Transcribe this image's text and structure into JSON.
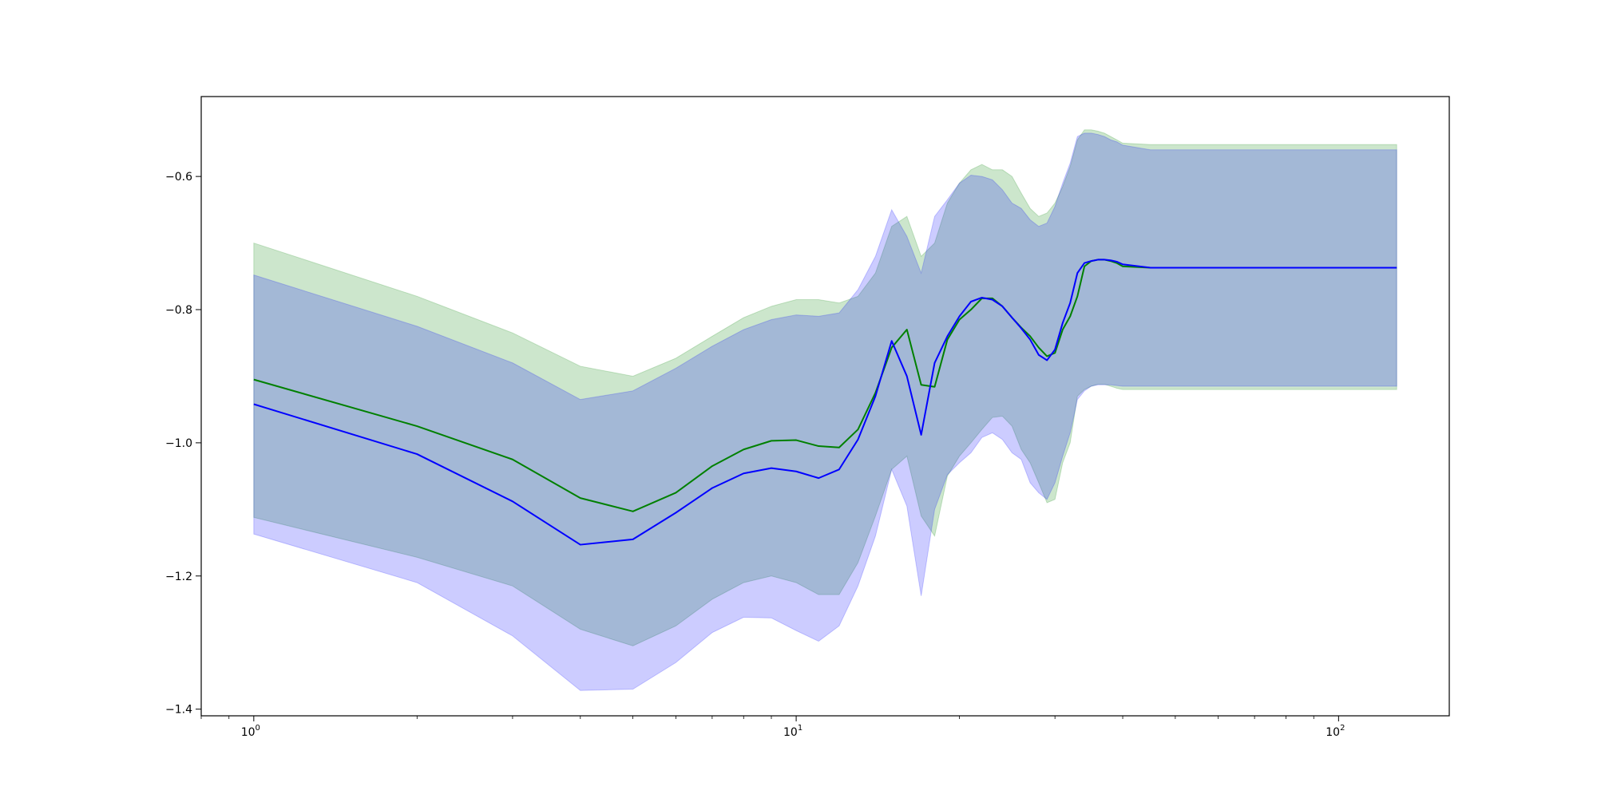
{
  "chart_data": {
    "type": "line",
    "title": "",
    "xlabel": "",
    "ylabel": "",
    "x_scale": "log",
    "xlim": [
      0.8,
      160
    ],
    "ylim": [
      -1.41,
      -0.48
    ],
    "grid": false,
    "x_ticks": [
      {
        "value": 1,
        "base": "10",
        "exp": "0"
      },
      {
        "value": 10,
        "base": "10",
        "exp": "1"
      },
      {
        "value": 100,
        "base": "10",
        "exp": "2"
      }
    ],
    "y_ticks": [
      {
        "value": -1.4,
        "label": "−1.4"
      },
      {
        "value": -1.2,
        "label": "−1.2"
      },
      {
        "value": -1.0,
        "label": "−1.0"
      },
      {
        "value": -0.8,
        "label": "−0.8"
      },
      {
        "value": -0.6,
        "label": "−0.6"
      }
    ],
    "colors": {
      "green_line": "#008000",
      "green_band": "#008000",
      "blue_line": "#0000ff",
      "blue_band": "#0000ff"
    },
    "series": [
      {
        "color": "green",
        "x": [
          1,
          2,
          3,
          4,
          5,
          6,
          7,
          8,
          9,
          10,
          11,
          12,
          13,
          14,
          15,
          16,
          17,
          18,
          19,
          20,
          21,
          22,
          23,
          24,
          25,
          26,
          27,
          28,
          29,
          30,
          31,
          32,
          33,
          34,
          35,
          36,
          37,
          38,
          39,
          40,
          45,
          128
        ],
        "y": [
          -0.905,
          -0.975,
          -1.025,
          -1.083,
          -1.103,
          -1.075,
          -1.035,
          -1.01,
          -0.997,
          -0.996,
          -1.005,
          -1.007,
          -0.98,
          -0.925,
          -0.857,
          -0.83,
          -0.913,
          -0.916,
          -0.845,
          -0.815,
          -0.8,
          -0.783,
          -0.783,
          -0.795,
          -0.812,
          -0.827,
          -0.84,
          -0.857,
          -0.87,
          -0.865,
          -0.83,
          -0.81,
          -0.78,
          -0.735,
          -0.727,
          -0.725,
          -0.725,
          -0.727,
          -0.73,
          -0.735,
          -0.737,
          -0.737
        ],
        "upper": [
          -0.7,
          -0.78,
          -0.835,
          -0.885,
          -0.9,
          -0.873,
          -0.84,
          -0.812,
          -0.795,
          -0.785,
          -0.785,
          -0.79,
          -0.78,
          -0.745,
          -0.675,
          -0.66,
          -0.72,
          -0.7,
          -0.64,
          -0.61,
          -0.59,
          -0.582,
          -0.59,
          -0.59,
          -0.6,
          -0.625,
          -0.648,
          -0.66,
          -0.655,
          -0.64,
          -0.615,
          -0.585,
          -0.545,
          -0.53,
          -0.53,
          -0.532,
          -0.535,
          -0.54,
          -0.545,
          -0.55,
          -0.552,
          -0.552
        ],
        "lower": [
          -1.112,
          -1.172,
          -1.215,
          -1.28,
          -1.305,
          -1.275,
          -1.235,
          -1.21,
          -1.2,
          -1.21,
          -1.228,
          -1.228,
          -1.18,
          -1.11,
          -1.04,
          -1.02,
          -1.11,
          -1.14,
          -1.05,
          -1.02,
          -1.0,
          -0.98,
          -0.962,
          -0.96,
          -0.975,
          -1.01,
          -1.03,
          -1.06,
          -1.09,
          -1.085,
          -1.03,
          -1.0,
          -0.93,
          -0.92,
          -0.915,
          -0.912,
          -0.912,
          -0.915,
          -0.918,
          -0.92,
          -0.92,
          -0.92
        ]
      },
      {
        "color": "blue",
        "x": [
          1,
          2,
          3,
          4,
          5,
          6,
          7,
          8,
          9,
          10,
          11,
          12,
          13,
          14,
          15,
          16,
          17,
          18,
          19,
          20,
          21,
          22,
          23,
          24,
          25,
          26,
          27,
          28,
          29,
          30,
          31,
          32,
          33,
          34,
          35,
          36,
          37,
          38,
          39,
          40,
          45,
          128
        ],
        "y": [
          -0.942,
          -1.017,
          -1.088,
          -1.153,
          -1.145,
          -1.105,
          -1.068,
          -1.046,
          -1.038,
          -1.043,
          -1.053,
          -1.04,
          -0.995,
          -0.93,
          -0.847,
          -0.9,
          -0.988,
          -0.88,
          -0.84,
          -0.81,
          -0.788,
          -0.782,
          -0.785,
          -0.795,
          -0.812,
          -0.828,
          -0.845,
          -0.868,
          -0.876,
          -0.86,
          -0.82,
          -0.79,
          -0.745,
          -0.73,
          -0.727,
          -0.725,
          -0.725,
          -0.726,
          -0.728,
          -0.732,
          -0.737,
          -0.737
        ],
        "upper": [
          -0.748,
          -0.825,
          -0.88,
          -0.935,
          -0.922,
          -0.888,
          -0.855,
          -0.83,
          -0.815,
          -0.808,
          -0.81,
          -0.805,
          -0.77,
          -0.72,
          -0.65,
          -0.69,
          -0.745,
          -0.66,
          -0.635,
          -0.61,
          -0.598,
          -0.6,
          -0.605,
          -0.62,
          -0.64,
          -0.648,
          -0.665,
          -0.675,
          -0.67,
          -0.645,
          -0.61,
          -0.58,
          -0.54,
          -0.535,
          -0.535,
          -0.537,
          -0.54,
          -0.545,
          -0.548,
          -0.553,
          -0.56,
          -0.56
        ],
        "lower": [
          -1.137,
          -1.21,
          -1.29,
          -1.372,
          -1.37,
          -1.33,
          -1.285,
          -1.262,
          -1.263,
          -1.282,
          -1.298,
          -1.275,
          -1.215,
          -1.14,
          -1.04,
          -1.095,
          -1.23,
          -1.1,
          -1.048,
          -1.03,
          -1.015,
          -0.992,
          -0.985,
          -0.995,
          -1.015,
          -1.025,
          -1.06,
          -1.075,
          -1.085,
          -1.06,
          -1.02,
          -0.985,
          -0.935,
          -0.922,
          -0.915,
          -0.913,
          -0.913,
          -0.913,
          -0.914,
          -0.915,
          -0.915,
          -0.915
        ]
      }
    ]
  }
}
